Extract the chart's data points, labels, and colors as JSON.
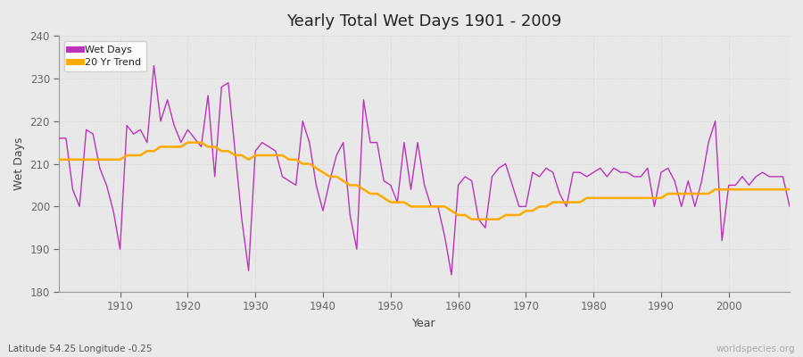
{
  "title": "Yearly Total Wet Days 1901 - 2009",
  "xlabel": "Year",
  "ylabel": "Wet Days",
  "subtitle": "Latitude 54.25 Longitude -0.25",
  "watermark": "worldspecies.org",
  "line_color": "#bb33bb",
  "trend_color": "#ffaa00",
  "bg_color": "#eaeaea",
  "plot_bg_color": "#e8e8e8",
  "grid_color": "#d0d0d0",
  "ylim": [
    180,
    240
  ],
  "xlim": [
    1901,
    2009
  ],
  "years": [
    1901,
    1902,
    1903,
    1904,
    1905,
    1906,
    1907,
    1908,
    1909,
    1910,
    1911,
    1912,
    1913,
    1914,
    1915,
    1916,
    1917,
    1918,
    1919,
    1920,
    1921,
    1922,
    1923,
    1924,
    1925,
    1926,
    1927,
    1928,
    1929,
    1930,
    1931,
    1932,
    1933,
    1934,
    1935,
    1936,
    1937,
    1938,
    1939,
    1940,
    1941,
    1942,
    1943,
    1944,
    1945,
    1946,
    1947,
    1948,
    1949,
    1950,
    1951,
    1952,
    1953,
    1954,
    1955,
    1956,
    1957,
    1958,
    1959,
    1960,
    1961,
    1962,
    1963,
    1964,
    1965,
    1966,
    1967,
    1968,
    1969,
    1970,
    1971,
    1972,
    1973,
    1974,
    1975,
    1976,
    1977,
    1978,
    1979,
    1980,
    1981,
    1982,
    1983,
    1984,
    1985,
    1986,
    1987,
    1988,
    1989,
    1990,
    1991,
    1992,
    1993,
    1994,
    1995,
    1996,
    1997,
    1998,
    1999,
    2000,
    2001,
    2002,
    2003,
    2004,
    2005,
    2006,
    2007,
    2008,
    2009
  ],
  "wet_days": [
    216,
    216,
    204,
    200,
    218,
    217,
    209,
    205,
    199,
    190,
    219,
    217,
    218,
    215,
    233,
    220,
    225,
    219,
    215,
    218,
    216,
    214,
    226,
    207,
    228,
    229,
    213,
    197,
    185,
    213,
    215,
    214,
    213,
    207,
    206,
    205,
    220,
    215,
    205,
    199,
    206,
    212,
    215,
    198,
    190,
    225,
    215,
    215,
    206,
    205,
    201,
    215,
    204,
    215,
    205,
    200,
    200,
    193,
    184,
    205,
    207,
    206,
    197,
    195,
    207,
    209,
    210,
    205,
    200,
    200,
    208,
    207,
    209,
    208,
    203,
    200,
    208,
    208,
    207,
    208,
    209,
    207,
    209,
    208,
    208,
    207,
    207,
    209,
    200,
    208,
    209,
    206,
    200,
    206,
    200,
    206,
    215,
    220,
    192,
    205,
    205,
    207,
    205,
    207,
    208,
    207,
    207,
    207,
    200
  ],
  "trend": [
    211,
    211,
    211,
    211,
    211,
    211,
    211,
    211,
    211,
    211,
    212,
    212,
    212,
    213,
    213,
    214,
    214,
    214,
    214,
    215,
    215,
    215,
    214,
    214,
    213,
    213,
    212,
    212,
    211,
    212,
    212,
    212,
    212,
    212,
    211,
    211,
    210,
    210,
    209,
    208,
    207,
    207,
    206,
    205,
    205,
    204,
    203,
    203,
    202,
    201,
    201,
    201,
    200,
    200,
    200,
    200,
    200,
    200,
    199,
    198,
    198,
    197,
    197,
    197,
    197,
    197,
    198,
    198,
    198,
    199,
    199,
    200,
    200,
    201,
    201,
    201,
    201,
    201,
    202,
    202,
    202,
    202,
    202,
    202,
    202,
    202,
    202,
    202,
    202,
    202,
    203,
    203,
    203,
    203,
    203,
    203,
    203,
    204,
    204,
    204,
    204,
    204,
    204,
    204,
    204,
    204,
    204,
    204,
    204
  ]
}
